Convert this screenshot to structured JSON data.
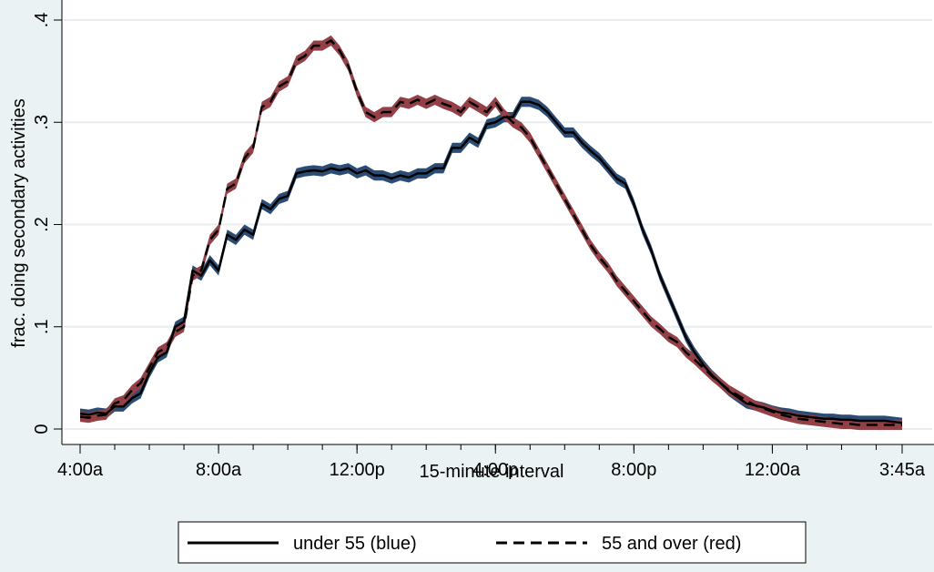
{
  "chart_data": {
    "type": "line",
    "title": "",
    "xlabel": "15-minute interval",
    "ylabel": "frac. doing secondary activities",
    "xlim": [
      0,
      95
    ],
    "ylim": [
      0,
      0.4
    ],
    "grid": true,
    "x_ticks": [
      {
        "pos": 0,
        "label": "4:00a"
      },
      {
        "pos": 16,
        "label": "8:00a"
      },
      {
        "pos": 32,
        "label": "12:00p"
      },
      {
        "pos": 48,
        "label": "4:00p"
      },
      {
        "pos": 64,
        "label": "8:00p"
      },
      {
        "pos": 80,
        "label": "12:00a"
      },
      {
        "pos": 95,
        "label": "3:45a"
      }
    ],
    "y_ticks": [
      {
        "value": 0,
        "label": "0"
      },
      {
        "value": 0.1,
        "label": ".1"
      },
      {
        "value": 0.2,
        "label": ".2"
      },
      {
        "value": 0.3,
        "label": ".3"
      },
      {
        "value": 0.4,
        "label": ".4"
      }
    ],
    "legend": {
      "position": "bottom"
    },
    "series": [
      {
        "name": "under 55 (blue)",
        "line_style": "solid",
        "band_color": "#2b4d75",
        "line_color": "#000000",
        "values": [
          0.015,
          0.014,
          0.016,
          0.015,
          0.022,
          0.022,
          0.03,
          0.035,
          0.055,
          0.07,
          0.075,
          0.1,
          0.105,
          0.155,
          0.15,
          0.165,
          0.155,
          0.19,
          0.185,
          0.195,
          0.19,
          0.22,
          0.215,
          0.225,
          0.228,
          0.25,
          0.252,
          0.253,
          0.252,
          0.255,
          0.253,
          0.255,
          0.25,
          0.253,
          0.248,
          0.248,
          0.245,
          0.248,
          0.246,
          0.25,
          0.25,
          0.255,
          0.255,
          0.275,
          0.275,
          0.285,
          0.28,
          0.298,
          0.3,
          0.305,
          0.305,
          0.32,
          0.32,
          0.317,
          0.31,
          0.3,
          0.29,
          0.29,
          0.28,
          0.272,
          0.265,
          0.255,
          0.245,
          0.24,
          0.22,
          0.195,
          0.175,
          0.15,
          0.13,
          0.11,
          0.09,
          0.075,
          0.063,
          0.053,
          0.045,
          0.037,
          0.031,
          0.025,
          0.023,
          0.021,
          0.018,
          0.016,
          0.015,
          0.013,
          0.012,
          0.011,
          0.01,
          0.01,
          0.009,
          0.009,
          0.008,
          0.008,
          0.008,
          0.008,
          0.007,
          0.006
        ]
      },
      {
        "name": "55 and over (red)",
        "line_style": "dashed",
        "band_color": "#934046",
        "line_color": "#000000",
        "values": [
          0.012,
          0.011,
          0.013,
          0.014,
          0.025,
          0.028,
          0.038,
          0.045,
          0.06,
          0.075,
          0.08,
          0.095,
          0.1,
          0.15,
          0.155,
          0.185,
          0.195,
          0.235,
          0.24,
          0.265,
          0.275,
          0.315,
          0.32,
          0.335,
          0.34,
          0.36,
          0.365,
          0.375,
          0.375,
          0.38,
          0.37,
          0.355,
          0.33,
          0.31,
          0.305,
          0.31,
          0.31,
          0.32,
          0.318,
          0.322,
          0.318,
          0.322,
          0.318,
          0.315,
          0.31,
          0.32,
          0.315,
          0.31,
          0.32,
          0.308,
          0.3,
          0.295,
          0.285,
          0.27,
          0.255,
          0.24,
          0.225,
          0.21,
          0.195,
          0.18,
          0.168,
          0.158,
          0.145,
          0.135,
          0.125,
          0.115,
          0.105,
          0.098,
          0.09,
          0.085,
          0.075,
          0.068,
          0.06,
          0.052,
          0.045,
          0.038,
          0.033,
          0.028,
          0.023,
          0.02,
          0.017,
          0.014,
          0.012,
          0.01,
          0.009,
          0.008,
          0.007,
          0.006,
          0.005,
          0.005,
          0.004,
          0.004,
          0.004,
          0.004,
          0.004,
          0.004
        ]
      }
    ]
  }
}
